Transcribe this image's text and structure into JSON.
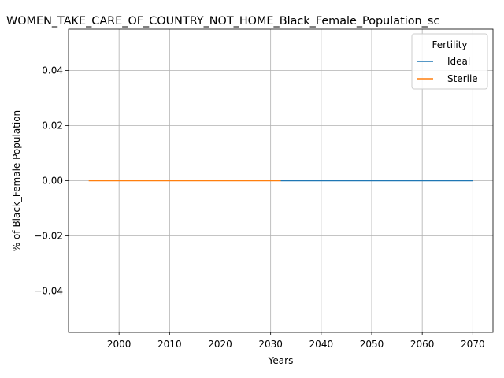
{
  "chart_data": {
    "type": "line",
    "title": "WOMEN_TAKE_CARE_OF_COUNTRY_NOT_HOME_Black_Female_Population_sc",
    "xlabel": "Years",
    "ylabel": "% of Black_Female Population",
    "xlim": [
      1990,
      2074
    ],
    "ylim": [
      -0.055,
      0.055
    ],
    "x_ticks": [
      2000,
      2010,
      2020,
      2030,
      2040,
      2050,
      2060,
      2070
    ],
    "y_ticks": [
      -0.04,
      -0.02,
      0.0,
      0.02,
      0.04
    ],
    "y_tick_labels": [
      "−0.04",
      "−0.02",
      "0.00",
      "0.02",
      "0.04"
    ],
    "grid": true,
    "legend": {
      "title": "Fertility",
      "placement": "top-right"
    },
    "series": [
      {
        "name": "Ideal",
        "color": "#1f77b4",
        "x": [
          2032,
          2070
        ],
        "y": [
          0.0,
          0.0
        ]
      },
      {
        "name": "Sterile",
        "color": "#ff7f0e",
        "x": [
          1994,
          2032
        ],
        "y": [
          0.0,
          0.0
        ]
      }
    ]
  }
}
